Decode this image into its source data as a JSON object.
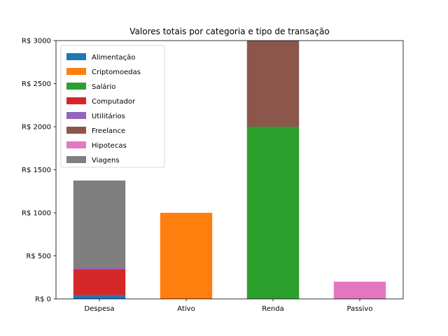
{
  "chart_data": {
    "type": "bar",
    "stacked": true,
    "title": "Valores totais por categoria e tipo de transação",
    "xlabel": "",
    "ylabel": "",
    "categories": [
      "Despesa",
      "Ativo",
      "Renda",
      "Passivo"
    ],
    "ylim": [
      0,
      3000
    ],
    "yticks": [
      0,
      500,
      1000,
      1500,
      2000,
      2500,
      3000
    ],
    "ytick_prefix": "R$ ",
    "grid": false,
    "legend_position": "top-left",
    "series": [
      {
        "name": "Alimentação",
        "color": "#1f77b4",
        "values": [
          45,
          0,
          0,
          0
        ]
      },
      {
        "name": "Criptomoedas",
        "color": "#ff7f0e",
        "values": [
          0,
          1000,
          0,
          0
        ]
      },
      {
        "name": "Salário",
        "color": "#2ca02c",
        "values": [
          0,
          0,
          2000,
          0
        ]
      },
      {
        "name": "Computador",
        "color": "#d62728",
        "values": [
          300,
          0,
          0,
          0
        ]
      },
      {
        "name": "Utilitários",
        "color": "#9467bd",
        "values": [
          25,
          0,
          0,
          0
        ]
      },
      {
        "name": "Freelance",
        "color": "#8c564b",
        "values": [
          0,
          0,
          1000,
          0
        ]
      },
      {
        "name": "Hipotecas",
        "color": "#e377c2",
        "values": [
          0,
          0,
          0,
          200
        ]
      },
      {
        "name": "Viagens",
        "color": "#7f7f7f",
        "values": [
          1005,
          0,
          0,
          0
        ]
      }
    ]
  }
}
